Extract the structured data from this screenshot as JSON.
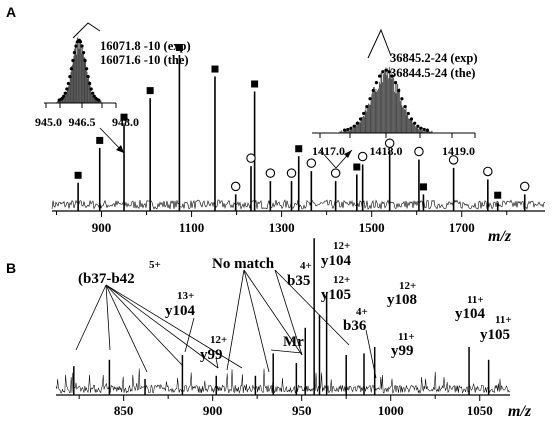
{
  "chart_data": [
    {
      "panel": "A",
      "type": "line",
      "xlabel": "m/z",
      "xlim": [
        790,
        1885
      ],
      "x_ticks": [
        "900",
        "1100",
        "1300",
        "1500",
        "1700"
      ],
      "peaks": [
        {
          "x": 848,
          "h": 0.17,
          "marker": "square"
        },
        {
          "x": 896,
          "h": 0.38,
          "marker": "square"
        },
        {
          "x": 950,
          "h": 0.52,
          "marker": "square"
        },
        {
          "x": 1008,
          "h": 0.68,
          "marker": "square"
        },
        {
          "x": 1073,
          "h": 0.94,
          "marker": "square"
        },
        {
          "x": 1152,
          "h": 0.81,
          "marker": "square"
        },
        {
          "x": 1240,
          "h": 0.72,
          "marker": "square"
        },
        {
          "x": 1198,
          "h": 0.1,
          "marker": "circle"
        },
        {
          "x": 1232,
          "h": 0.27,
          "marker": "circle"
        },
        {
          "x": 1275,
          "h": 0.18,
          "marker": "circle"
        },
        {
          "x": 1322,
          "h": 0.18,
          "marker": "circle"
        },
        {
          "x": 1338,
          "h": 0.33,
          "marker": "square"
        },
        {
          "x": 1366,
          "h": 0.24,
          "marker": "circle"
        },
        {
          "x": 1420,
          "h": 0.18,
          "marker": "circle"
        },
        {
          "x": 1467,
          "h": 0.22,
          "marker": "square"
        },
        {
          "x": 1480,
          "h": 0.28,
          "marker": "circle"
        },
        {
          "x": 1540,
          "h": 0.36,
          "marker": "circle"
        },
        {
          "x": 1605,
          "h": 0.31,
          "marker": "circle"
        },
        {
          "x": 1615,
          "h": 0.1,
          "marker": "square"
        },
        {
          "x": 1682,
          "h": 0.26,
          "marker": "circle"
        },
        {
          "x": 1758,
          "h": 0.19,
          "marker": "circle"
        },
        {
          "x": 1780,
          "h": 0.05,
          "marker": "square"
        },
        {
          "x": 1840,
          "h": 0.1,
          "marker": "circle"
        }
      ],
      "insets": [
        {
          "x_ticks": [
            "945.0",
            "946.5",
            "948.0"
          ],
          "labels": [
            "16071.8 -10 (exp)",
            "16071.6 -10 (the)"
          ]
        },
        {
          "x_ticks": [
            "1417.0",
            "1418.0",
            "1419.0"
          ],
          "labels": [
            "36845.2-24 (exp)",
            "36844.5-24 (the)"
          ]
        }
      ]
    },
    {
      "panel": "B",
      "type": "line",
      "xlabel": "m/z",
      "xlim": [
        812,
        1067
      ],
      "x_ticks": [
        "850",
        "900",
        "950",
        "1000",
        "1050"
      ],
      "peaks": [
        {
          "x": 822,
          "h": 0.18
        },
        {
          "x": 842,
          "h": 0.22
        },
        {
          "x": 862,
          "h": 0.1
        },
        {
          "x": 883,
          "h": 0.25
        },
        {
          "x": 902,
          "h": 0.12
        },
        {
          "x": 924,
          "h": 0.12
        },
        {
          "x": 934,
          "h": 0.26
        },
        {
          "x": 947,
          "h": 0.2
        },
        {
          "x": 952,
          "h": 0.42
        },
        {
          "x": 957,
          "h": 0.98
        },
        {
          "x": 960,
          "h": 0.5
        },
        {
          "x": 964,
          "h": 0.64
        },
        {
          "x": 975,
          "h": 0.25
        },
        {
          "x": 985,
          "h": 0.26
        },
        {
          "x": 991,
          "h": 0.3
        },
        {
          "x": 1044,
          "h": 0.3
        },
        {
          "x": 1055,
          "h": 0.22
        }
      ],
      "annotations": [
        {
          "id": "b37-b42",
          "name": "(b37-b42",
          "charge": "5+"
        },
        {
          "id": "y104-13",
          "name": "y104",
          "charge": "13+"
        },
        {
          "id": "y99-12",
          "name": "y99",
          "charge": "12+"
        },
        {
          "id": "no-match",
          "name": "No match",
          "charge": ""
        },
        {
          "id": "b35-4",
          "name": "b35",
          "charge": "4+"
        },
        {
          "id": "mr",
          "name": "Mr",
          "charge": ""
        },
        {
          "id": "y104-12",
          "name": "y104",
          "charge": "12+"
        },
        {
          "id": "y105-12",
          "name": "y105",
          "charge": "12+"
        },
        {
          "id": "b36-4",
          "name": "b36",
          "charge": "4+"
        },
        {
          "id": "y108-12",
          "name": "y108",
          "charge": "12+"
        },
        {
          "id": "y99-11",
          "name": "y99",
          "charge": "11+"
        },
        {
          "id": "y104-11",
          "name": "y104",
          "charge": "11+"
        },
        {
          "id": "y105-11",
          "name": "y105",
          "charge": "11+"
        }
      ]
    }
  ]
}
